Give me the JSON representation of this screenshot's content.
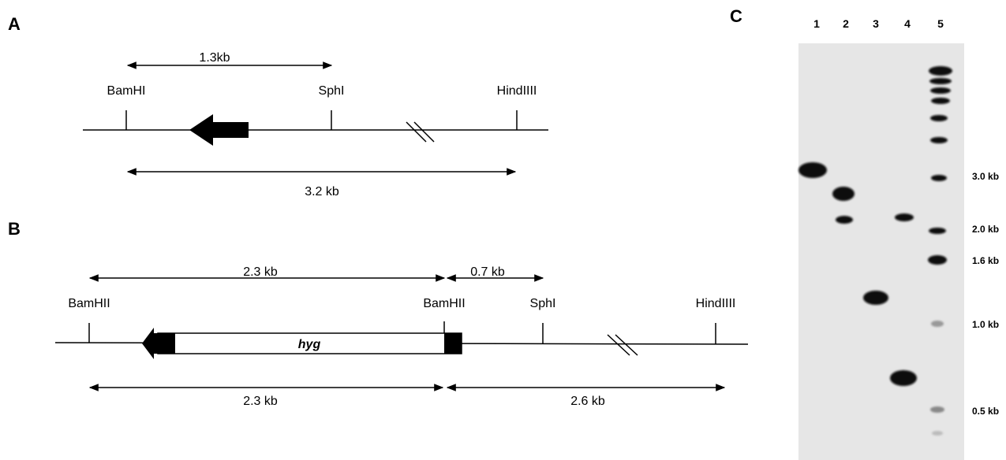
{
  "panel_a": {
    "label": "A",
    "span_top": "1.3kb",
    "sites": [
      "BamHI",
      "SphI",
      "HindIIII"
    ],
    "span_bottom": "3.2 kb"
  },
  "panel_b": {
    "label": "B",
    "spans_top": [
      "2.3 kb",
      "0.7 kb"
    ],
    "sites": [
      "BamHII",
      "BamHII",
      "SphI",
      "HindIIII"
    ],
    "gene": "hyg",
    "spans_bottom": [
      "2.3 kb",
      "2.6 kb"
    ]
  },
  "panel_c": {
    "label": "C",
    "lanes": [
      "1",
      "2",
      "3",
      "4",
      "5"
    ],
    "markers": [
      "3.0 kb",
      "2.0 kb",
      "1.6 kb",
      "1.0 kb",
      "0.5 kb"
    ]
  }
}
